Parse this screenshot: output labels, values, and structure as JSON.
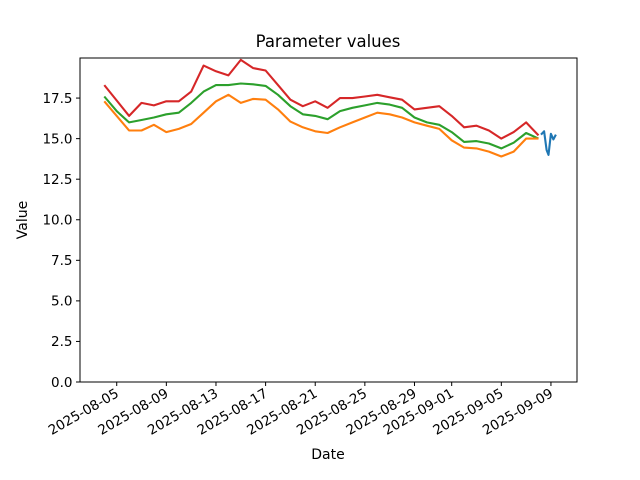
{
  "chart_data": {
    "type": "line",
    "title": "Parameter values",
    "xlabel": "Date",
    "ylabel": "Value",
    "grid": false,
    "legend": "none",
    "x_unit": "days since 2025-08-04",
    "xlim": [
      -1.96,
      38.1
    ],
    "ylim": [
      0,
      19.97
    ],
    "y_ticks": [
      0.0,
      2.5,
      5.0,
      7.5,
      10.0,
      12.5,
      15.0,
      17.5
    ],
    "x_ticks": [
      {
        "day": 1,
        "label": "2025-08-05"
      },
      {
        "day": 5,
        "label": "2025-08-09"
      },
      {
        "day": 9,
        "label": "2025-08-13"
      },
      {
        "day": 13,
        "label": "2025-08-17"
      },
      {
        "day": 17,
        "label": "2025-08-21"
      },
      {
        "day": 21,
        "label": "2025-08-25"
      },
      {
        "day": 25,
        "label": "2025-08-29"
      },
      {
        "day": 28,
        "label": "2025-09-01"
      },
      {
        "day": 32,
        "label": "2025-09-05"
      },
      {
        "day": 36,
        "label": "2025-09-09"
      }
    ],
    "dates": [
      "2025-08-04",
      "2025-08-05",
      "2025-08-06",
      "2025-08-07",
      "2025-08-08",
      "2025-08-09",
      "2025-08-10",
      "2025-08-11",
      "2025-08-12",
      "2025-08-13",
      "2025-08-14",
      "2025-08-15",
      "2025-08-16",
      "2025-08-17",
      "2025-08-18",
      "2025-08-19",
      "2025-08-20",
      "2025-08-21",
      "2025-08-22",
      "2025-08-23",
      "2025-08-24",
      "2025-08-25",
      "2025-08-26",
      "2025-08-27",
      "2025-08-28",
      "2025-08-29",
      "2025-08-30",
      "2025-08-31",
      "2025-09-01",
      "2025-09-02",
      "2025-09-03",
      "2025-09-04",
      "2025-09-05",
      "2025-09-06",
      "2025-09-07",
      "2025-09-08"
    ],
    "series": [
      {
        "name": "red",
        "color": "#d62728",
        "values": [
          18.3,
          17.35,
          16.4,
          17.2,
          17.05,
          17.3,
          17.3,
          17.9,
          19.5,
          19.15,
          18.9,
          19.85,
          19.35,
          19.2,
          18.3,
          17.4,
          17.0,
          17.3,
          16.9,
          17.5,
          17.5,
          17.6,
          17.7,
          17.55,
          17.4,
          16.8,
          16.9,
          17.0,
          16.4,
          15.7,
          15.8,
          15.5,
          15.0,
          15.4,
          16.0,
          15.2
        ]
      },
      {
        "name": "green",
        "color": "#2ca02c",
        "values": [
          17.6,
          16.7,
          16.0,
          16.15,
          16.3,
          16.5,
          16.6,
          17.2,
          17.9,
          18.3,
          18.3,
          18.4,
          18.35,
          18.25,
          17.7,
          17.0,
          16.5,
          16.4,
          16.2,
          16.7,
          16.9,
          17.05,
          17.2,
          17.1,
          16.9,
          16.3,
          16.0,
          15.85,
          15.4,
          14.8,
          14.85,
          14.7,
          14.4,
          14.75,
          15.35,
          15.0
        ]
      },
      {
        "name": "orange",
        "color": "#ff7f0e",
        "values": [
          17.3,
          16.4,
          15.5,
          15.5,
          15.85,
          15.4,
          15.6,
          15.9,
          16.6,
          17.3,
          17.7,
          17.2,
          17.45,
          17.4,
          16.8,
          16.05,
          15.7,
          15.45,
          15.35,
          15.7,
          16.0,
          16.3,
          16.6,
          16.5,
          16.3,
          16.0,
          15.8,
          15.6,
          14.9,
          14.45,
          14.4,
          14.2,
          13.9,
          14.2,
          15.0,
          15.0
        ]
      },
      {
        "name": "blue",
        "color": "#1f77b4",
        "x_days": [
          35.2,
          35.45,
          35.65,
          35.8,
          36.0,
          36.2,
          36.4
        ],
        "values": [
          15.25,
          15.45,
          14.3,
          14.0,
          15.3,
          14.95,
          15.25
        ]
      }
    ]
  }
}
